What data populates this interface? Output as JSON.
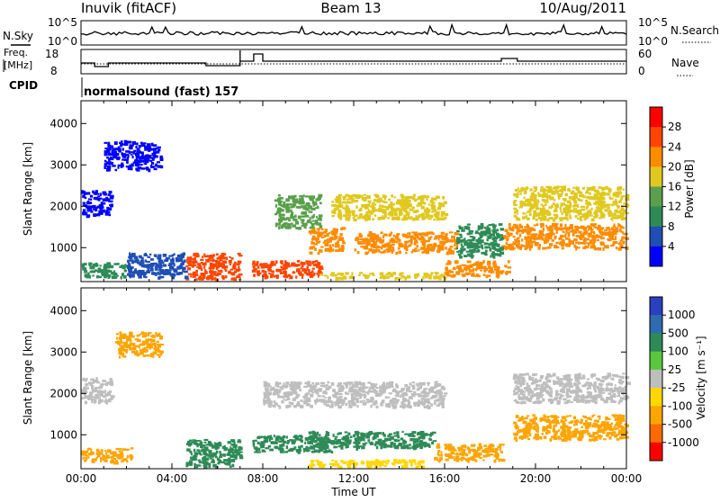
{
  "header": {
    "station": "Inuvik (fitACF)",
    "beam": "Beam 13",
    "date": "10/Aug/2011"
  },
  "strips": {
    "nsky_label": "N.Sky",
    "nsky_ticks": [
      "10^5",
      "10^0"
    ],
    "nsearch_label": "N.Search",
    "freq_label_line1": "Freq.",
    "freq_label_line2": "[MHz]",
    "freq_ticks": [
      "18",
      "8"
    ],
    "nave_label": "Nave",
    "nave_ticks": [
      "60",
      "0"
    ],
    "cpid_label": "CPID",
    "cpid_text": "normalsound (fast) 157"
  },
  "chart_data": [
    {
      "type": "heatmap",
      "name": "power",
      "ylabel": "Slant Range [km]",
      "xlabel": "",
      "ylim": [
        180,
        4550
      ],
      "xlim": [
        0,
        24
      ],
      "yticks": [
        1000,
        2000,
        3000,
        4000
      ],
      "colorbar": {
        "label": "Power [dB]",
        "ticks": [
          "4",
          "8",
          "12",
          "16",
          "20",
          "24",
          "28"
        ],
        "colors": [
          "#0000ff",
          "#1f4fb5",
          "#2e8b57",
          "#5aa04c",
          "#e0c81e",
          "#ff8c00",
          "#ff4500",
          "#ff0000"
        ]
      },
      "echo_regions": [
        {
          "t0": 4.6,
          "t1": 7.0,
          "r0": 250,
          "r1": 880,
          "level": 28
        },
        {
          "t0": 7.5,
          "t1": 10.5,
          "r0": 300,
          "r1": 700,
          "level": 26
        },
        {
          "t0": 10.5,
          "t1": 16.0,
          "r0": 280,
          "r1": 420,
          "level": 20
        },
        {
          "t0": 16.0,
          "t1": 18.8,
          "r0": 330,
          "r1": 700,
          "level": 22
        },
        {
          "t0": 0.0,
          "t1": 2.0,
          "r0": 300,
          "r1": 650,
          "level": 12
        },
        {
          "t0": 2.0,
          "t1": 4.6,
          "r0": 300,
          "r1": 900,
          "level": 8
        },
        {
          "t0": 0.0,
          "t1": 1.3,
          "r0": 1800,
          "r1": 2400,
          "level": 4
        },
        {
          "t0": 1.0,
          "t1": 3.5,
          "r0": 2900,
          "r1": 3600,
          "level": 4
        },
        {
          "t0": 8.5,
          "t1": 10.5,
          "r0": 1500,
          "r1": 2300,
          "level": 16
        },
        {
          "t0": 10.0,
          "t1": 11.5,
          "r0": 900,
          "r1": 1500,
          "level": 22
        },
        {
          "t0": 11.0,
          "t1": 16.0,
          "r0": 1700,
          "r1": 2300,
          "level": 18
        },
        {
          "t0": 12.0,
          "t1": 16.5,
          "r0": 900,
          "r1": 1400,
          "level": 22
        },
        {
          "t0": 18.5,
          "t1": 24.0,
          "r0": 1000,
          "r1": 1600,
          "level": 24
        },
        {
          "t0": 19.0,
          "t1": 24.0,
          "r0": 1700,
          "r1": 2500,
          "level": 18
        },
        {
          "t0": 16.5,
          "t1": 18.5,
          "r0": 800,
          "r1": 1600,
          "level": 10
        }
      ]
    },
    {
      "type": "heatmap",
      "name": "velocity",
      "ylabel": "Slant Range [km]",
      "xlabel": "Time UT",
      "ylim": [
        180,
        4550
      ],
      "xlim": [
        0,
        24
      ],
      "xticks": [
        "00:00",
        "04:00",
        "08:00",
        "12:00",
        "16:00",
        "20:00",
        "00:00"
      ],
      "yticks": [
        1000,
        2000,
        3000,
        4000
      ],
      "colorbar": {
        "label": "Velocity [m s⁻¹]",
        "ticks": [
          "1000",
          "500",
          "100",
          "25",
          "-25",
          "-100",
          "-500",
          "-1000"
        ],
        "colors": [
          "#2a40c0",
          "#2e6bb0",
          "#2e8b57",
          "#5ac83c",
          "#bebebe",
          "#ffd700",
          "#ffa500",
          "#ff6a00",
          "#ff0000"
        ]
      },
      "echo_regions": [
        {
          "t0": 0.0,
          "t1": 2.2,
          "r0": 350,
          "r1": 700,
          "level": -300
        },
        {
          "t0": 4.6,
          "t1": 7.0,
          "r0": 250,
          "r1": 900,
          "level": 100
        },
        {
          "t0": 7.5,
          "t1": 11.0,
          "r0": 600,
          "r1": 1000,
          "level": 300
        },
        {
          "t0": 10.0,
          "t1": 15.5,
          "r0": 700,
          "r1": 1100,
          "level": 300
        },
        {
          "t0": 15.5,
          "t1": 18.5,
          "r0": 400,
          "r1": 800,
          "level": -400
        },
        {
          "t0": 19.0,
          "t1": 24.0,
          "r0": 900,
          "r1": 1500,
          "level": -400
        },
        {
          "t0": 0.0,
          "t1": 1.3,
          "r0": 1800,
          "r1": 2400,
          "level": 0
        },
        {
          "t0": 8.0,
          "t1": 16.0,
          "r0": 1700,
          "r1": 2300,
          "level": 0
        },
        {
          "t0": 19.0,
          "t1": 24.0,
          "r0": 1800,
          "r1": 2500,
          "level": 0
        },
        {
          "t0": 10.0,
          "t1": 15.0,
          "r0": 250,
          "r1": 420,
          "level": -50
        },
        {
          "t0": 1.5,
          "t1": 3.5,
          "r0": 2900,
          "r1": 3500,
          "level": -300
        }
      ]
    }
  ]
}
